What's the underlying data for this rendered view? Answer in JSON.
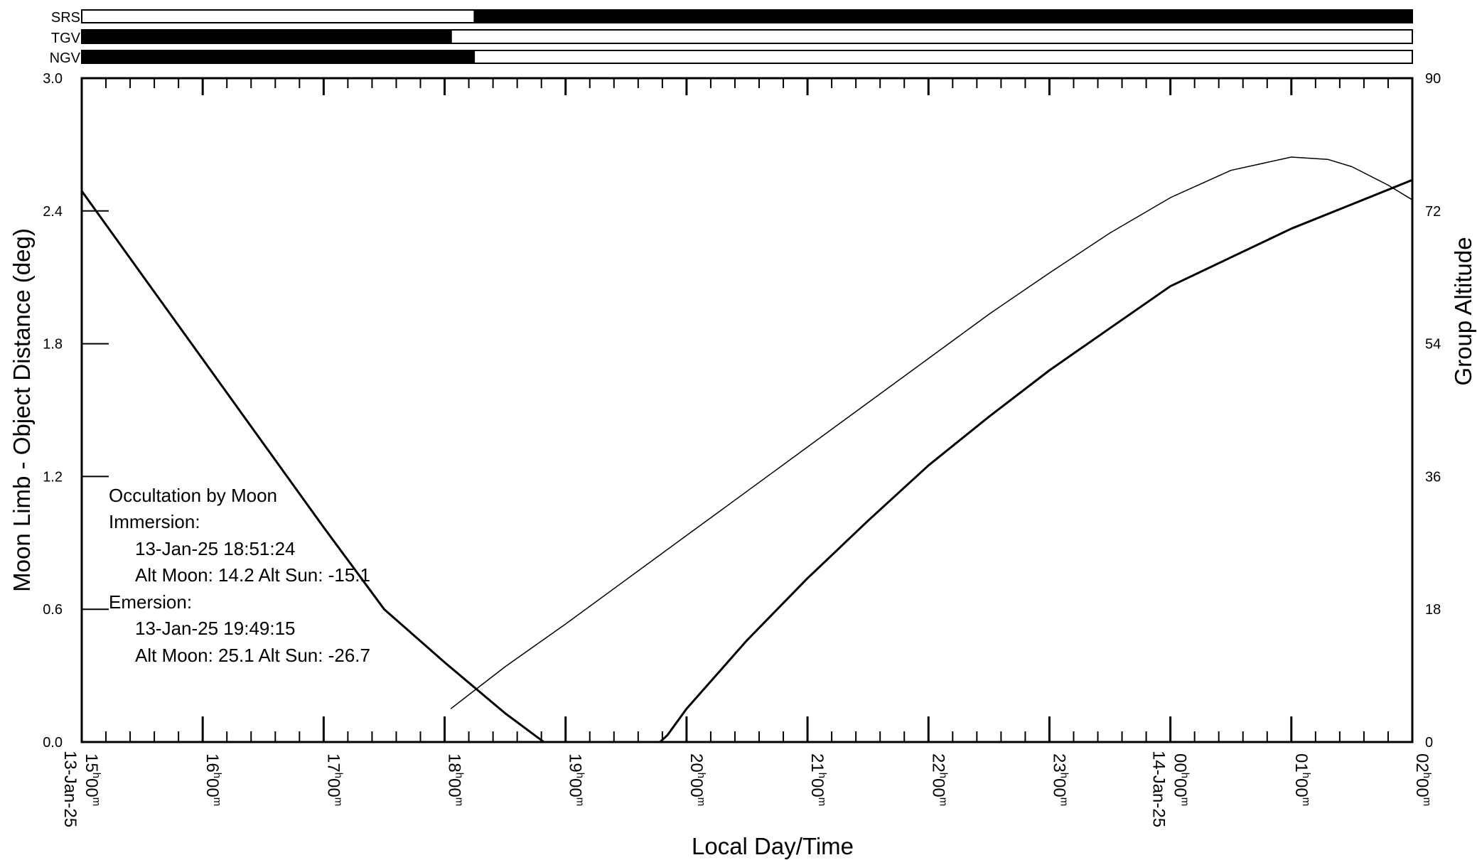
{
  "chart_data": {
    "type": "line",
    "xlabel": "Local Day/Time",
    "ylabel_left": "Moon Limb - Object Distance (deg)",
    "ylabel_right": "Group Altitude",
    "xlim": [
      15.0,
      26.0
    ],
    "ylim_left": [
      0.0,
      3.0
    ],
    "ylim_right": [
      0,
      90
    ],
    "left_ticks": [
      "0.0",
      "0.6",
      "1.2",
      "1.8",
      "2.4",
      "3.0"
    ],
    "right_ticks": [
      "0",
      "18",
      "36",
      "54",
      "72",
      "90"
    ],
    "x_tick_hours": [
      "15",
      "16",
      "17",
      "18",
      "19",
      "20",
      "21",
      "22",
      "23",
      "00",
      "01",
      "02"
    ],
    "minute_value": "00",
    "hour_superscript": "h",
    "minute_superscript": "m",
    "date_labels": [
      {
        "x": 15.0,
        "text": "13-Jan-25"
      },
      {
        "x": 24.0,
        "text": "14-Jan-25"
      }
    ],
    "bars": [
      {
        "name": "SRS",
        "segments": [
          [
            18.24,
            26.0
          ]
        ]
      },
      {
        "name": "TGV",
        "segments": [
          [
            15.0,
            18.06
          ]
        ]
      },
      {
        "name": "NGV",
        "segments": [
          [
            15.0,
            18.25
          ]
        ]
      }
    ],
    "series": [
      {
        "axis": "left",
        "style": "thick",
        "x": [
          15.0,
          15.5,
          16.0,
          16.5,
          17.0,
          17.5,
          18.0,
          18.5,
          18.82,
          18.86,
          19.5,
          19.78,
          19.84,
          20.0,
          20.5,
          21.0,
          21.5,
          22.0,
          22.5,
          23.0,
          23.5,
          24.0,
          24.5,
          25.0,
          25.5,
          26.0
        ],
        "y": [
          2.49,
          2.11,
          1.73,
          1.35,
          0.97,
          0.6,
          0.36,
          0.13,
          0.0,
          0.0,
          0.0,
          0.0,
          0.03,
          0.15,
          0.46,
          0.74,
          1.0,
          1.25,
          1.47,
          1.68,
          1.87,
          2.06,
          2.19,
          2.32,
          2.43,
          2.54
        ]
      },
      {
        "axis": "right",
        "style": "thin",
        "x": [
          18.05,
          18.5,
          19.0,
          19.5,
          20.0,
          20.5,
          21.0,
          21.5,
          22.0,
          22.5,
          23.0,
          23.5,
          24.0,
          24.5,
          25.0,
          25.3,
          25.5,
          25.8,
          26.0
        ],
        "y": [
          4.5,
          10.2,
          16.0,
          22.0,
          28.0,
          34.0,
          40.0,
          46.0,
          52.0,
          58.0,
          63.6,
          69.0,
          73.8,
          77.5,
          79.3,
          79.0,
          78.0,
          75.5,
          73.5
        ]
      }
    ],
    "annotation": {
      "title": "Occultation by Moon",
      "immersion_label": "Immersion:",
      "immersion_time": "13-Jan-25  18:51:24",
      "immersion_alt": "Alt Moon:  14.2  Alt Sun: -15.1",
      "emersion_label": "Emersion:",
      "emersion_time": "13-Jan-25  19:49:15",
      "emersion_alt": "Alt Moon:  25.1  Alt Sun: -26.7"
    }
  }
}
